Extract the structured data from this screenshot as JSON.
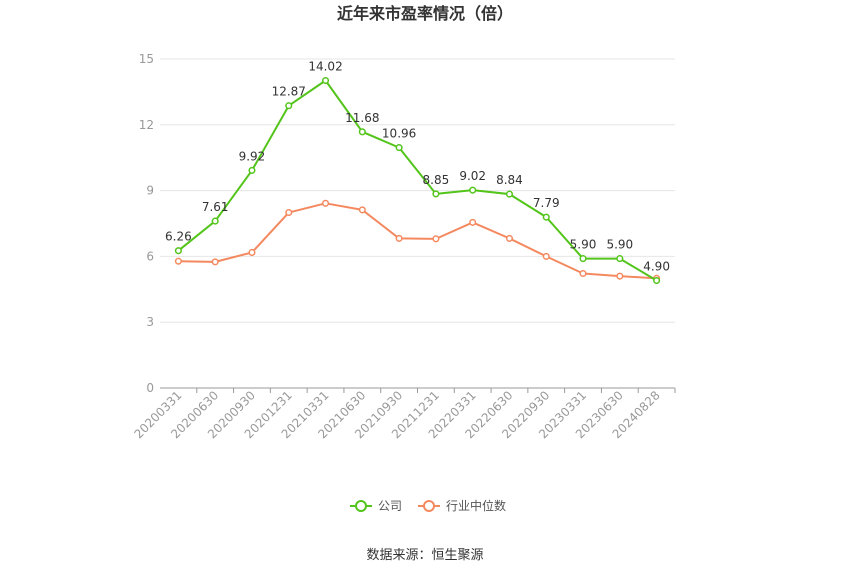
{
  "chart_data": {
    "type": "line",
    "title": "近年来市盈率情况（倍）",
    "xlabel": "",
    "ylabel": "",
    "ylim": [
      0,
      15
    ],
    "yticks": [
      0,
      3,
      6,
      9,
      12,
      15
    ],
    "grid": true,
    "legend_position": "bottom-center",
    "categories": [
      "20200331",
      "20200630",
      "20200930",
      "20201231",
      "20210331",
      "20210630",
      "20210930",
      "20211231",
      "20220331",
      "20220630",
      "20220930",
      "20230331",
      "20230630",
      "20240828"
    ],
    "series": [
      {
        "name": "公司",
        "color": "#52c41a",
        "values": [
          6.26,
          7.61,
          9.92,
          12.87,
          14.02,
          11.68,
          10.96,
          8.85,
          9.02,
          8.84,
          7.79,
          5.9,
          5.9,
          4.9
        ],
        "labels": [
          "6.26",
          "7.61",
          "9.92",
          "12.87",
          "14.02",
          "11.68",
          "10.96",
          "8.85",
          "9.02",
          "8.84",
          "7.79",
          "5.90",
          "5.90",
          "4.90"
        ]
      },
      {
        "name": "行业中位数",
        "color": "#f4895f",
        "values": [
          5.78,
          5.75,
          6.18,
          8.0,
          8.42,
          8.12,
          6.82,
          6.8,
          7.55,
          6.82,
          6.0,
          5.22,
          5.1,
          5.0
        ]
      }
    ]
  },
  "source": "数据来源：恒生聚源"
}
